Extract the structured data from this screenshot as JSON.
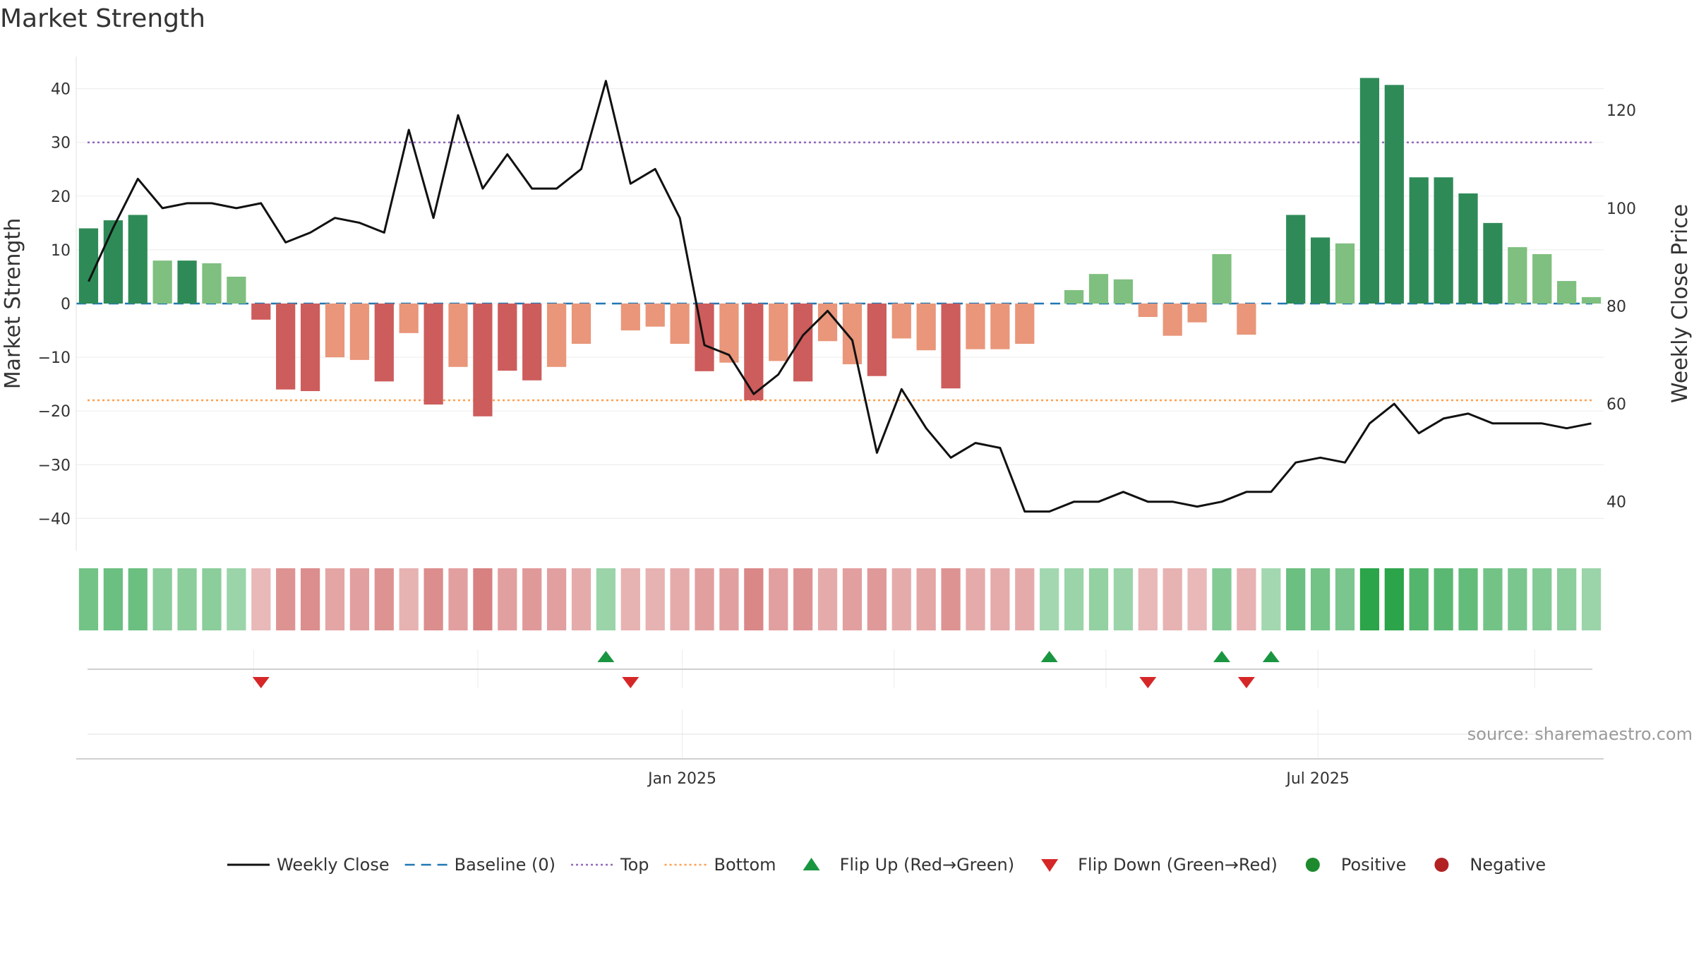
{
  "chart_data": {
    "type": "bar",
    "title": "Market Strength",
    "ylabel": "Market Strength",
    "ylabel_right": "Weekly Close Price",
    "ylim": [
      -46,
      46
    ],
    "ylim_right": [
      30,
      131
    ],
    "yticks": [
      40,
      30,
      20,
      10,
      0,
      -10,
      -20,
      -30,
      -40
    ],
    "yticks_right": [
      120,
      100,
      80,
      60,
      40
    ],
    "date_ticks": [
      {
        "label": "Jan 2025",
        "index": 24.6
      },
      {
        "label": "Jul 2025",
        "index": 50.4
      }
    ],
    "top_line": 30,
    "bottom_line": -18,
    "baseline": 0,
    "strength": [
      14,
      15.5,
      16.5,
      8,
      8,
      7.5,
      5,
      -3,
      -16,
      -16.3,
      -10,
      -10.5,
      -14.5,
      -5.5,
      -18.8,
      -11.8,
      -21,
      -12.5,
      -14.3,
      -11.8,
      -7.5,
      0,
      -5,
      -4.3,
      -7.5,
      -12.6,
      -11,
      -18,
      -10.7,
      -14.5,
      -7,
      -11.3,
      -13.5,
      -6.5,
      -8.7,
      -15.8,
      -8.5,
      -8.5,
      -7.5,
      0,
      2.5,
      5.5,
      4.5,
      -2.5,
      -6,
      -3.5,
      9.2,
      -5.8,
      0,
      16.5,
      12.3,
      11.2,
      42,
      40.7,
      23.5,
      23.5,
      20.5,
      15,
      10.5,
      9.2,
      4.2,
      1.2
    ],
    "close": [
      85,
      96,
      106,
      100,
      101,
      101,
      100,
      101,
      93,
      95,
      98,
      97,
      95,
      116,
      98,
      119,
      104,
      111,
      104,
      104,
      108,
      126,
      105,
      108,
      98,
      72,
      70,
      62,
      66,
      74,
      79,
      73,
      50,
      63,
      55,
      49,
      52,
      51,
      38,
      38,
      40,
      40,
      42,
      40,
      40,
      39,
      40,
      42,
      42,
      48,
      49,
      48,
      56,
      60,
      54,
      57,
      58,
      56,
      56,
      56,
      55,
      56
    ],
    "cells": [
      0.55,
      0.6,
      0.6,
      0.4,
      0.4,
      0.4,
      0.3,
      0.25,
      0.55,
      0.6,
      0.4,
      0.45,
      0.55,
      0.3,
      0.6,
      0.45,
      0.7,
      0.45,
      0.5,
      0.45,
      0.35,
      0.3,
      0.3,
      0.3,
      0.35,
      0.45,
      0.45,
      0.65,
      0.45,
      0.55,
      0.35,
      0.45,
      0.5,
      0.35,
      0.4,
      0.55,
      0.35,
      0.35,
      0.35,
      0.25,
      0.3,
      0.35,
      0.3,
      0.25,
      0.3,
      0.25,
      0.45,
      0.3,
      0.25,
      0.6,
      0.55,
      0.5,
      1.0,
      1.0,
      0.75,
      0.7,
      0.65,
      0.55,
      0.5,
      0.45,
      0.4,
      0.3
    ],
    "flip_up": [
      21,
      39,
      46,
      48
    ],
    "flip_down": [
      7,
      22,
      43,
      47
    ],
    "colors": {
      "strong_up": "#2e8b57",
      "weak_up": "#7fbf7f",
      "strong_down": "#cd5c5c",
      "weak_down": "#e9967a",
      "close": "#111111",
      "baseline": "#1f77b4",
      "top": "#9467bd",
      "bottom": "#ff9f50",
      "flip_up": "#1a9641",
      "flip_down": "#d62728",
      "positive": "#1e8a2e",
      "negative": "#b22222"
    },
    "legend": [
      {
        "key": "close",
        "label": "Weekly Close",
        "marker": "line"
      },
      {
        "key": "baseline",
        "label": "Baseline (0)",
        "marker": "dashed"
      },
      {
        "key": "top",
        "label": "Top",
        "marker": "dotted"
      },
      {
        "key": "bottom",
        "label": "Bottom",
        "marker": "dotted"
      },
      {
        "key": "flip_up",
        "label": "Flip Up (Red→Green)",
        "marker": "triangle-up"
      },
      {
        "key": "flip_down",
        "label": "Flip Down (Green→Red)",
        "marker": "triangle-down"
      },
      {
        "key": "positive",
        "label": "Positive",
        "marker": "dot"
      },
      {
        "key": "negative",
        "label": "Negative",
        "marker": "dot"
      }
    ],
    "legend_position": "bottom",
    "source": "source: sharemaestro.com"
  }
}
